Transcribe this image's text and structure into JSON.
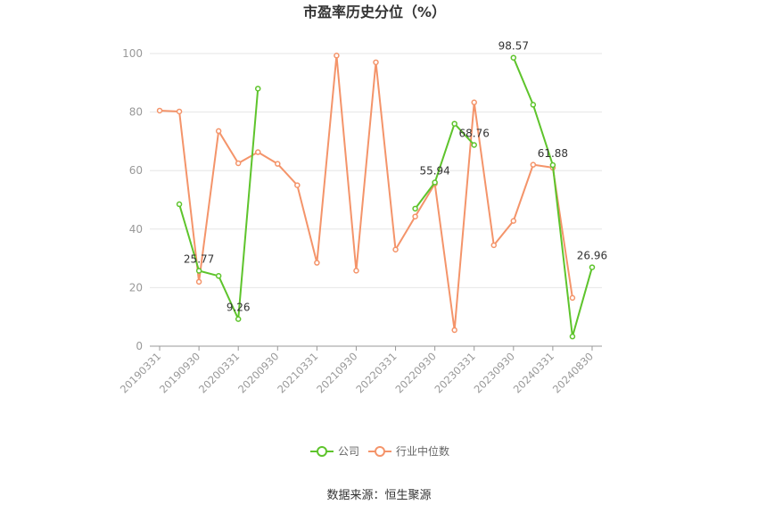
{
  "chart_data": {
    "type": "line",
    "title": "市盈率历史分位（%）",
    "source": "数据来源：恒生聚源",
    "ylim": [
      0,
      100
    ],
    "yticks": [
      0,
      20,
      40,
      60,
      80,
      100
    ],
    "categories": [
      "20190331",
      "20190630",
      "20190930",
      "20191231",
      "20200331",
      "20200630",
      "20200930",
      "20201231",
      "20210331",
      "20210630",
      "20210930",
      "20211231",
      "20220331",
      "20220630",
      "20220930",
      "20221231",
      "20230331",
      "20230630",
      "20230930",
      "20231231",
      "20240331",
      "20240630",
      "20240830"
    ],
    "xtick_labels": [
      "20190331",
      "20190930",
      "20200331",
      "20200930",
      "20210331",
      "20210930",
      "20220331",
      "20220930",
      "20230331",
      "20230930",
      "20240331",
      "20240830"
    ],
    "series": [
      {
        "name": "公司",
        "color": "#5ec42c",
        "values": [
          null,
          48.5,
          25.77,
          24.0,
          9.26,
          88.0,
          null,
          null,
          null,
          null,
          null,
          null,
          null,
          47.0,
          55.94,
          76.0,
          68.76,
          null,
          98.57,
          82.5,
          61.88,
          3.3,
          26.96
        ]
      },
      {
        "name": "行业中位数",
        "color": "#f4946a",
        "values": [
          80.5,
          80.2,
          22.0,
          73.5,
          62.5,
          66.3,
          62.3,
          55.0,
          28.5,
          99.3,
          25.8,
          97.0,
          33.0,
          44.3,
          55.5,
          5.5,
          83.3,
          34.5,
          42.8,
          62.0,
          61.0,
          16.5,
          null
        ]
      }
    ],
    "data_labels": [
      {
        "series": 0,
        "index": 2,
        "text": "25.77"
      },
      {
        "series": 0,
        "index": 4,
        "text": "9.26"
      },
      {
        "series": 0,
        "index": 14,
        "text": "55.94"
      },
      {
        "series": 0,
        "index": 16,
        "text": "68.76"
      },
      {
        "series": 0,
        "index": 18,
        "text": "98.57"
      },
      {
        "series": 0,
        "index": 20,
        "text": "61.88"
      },
      {
        "series": 0,
        "index": 22,
        "text": "26.96"
      }
    ],
    "legend_position": "bottom",
    "grid": true
  }
}
